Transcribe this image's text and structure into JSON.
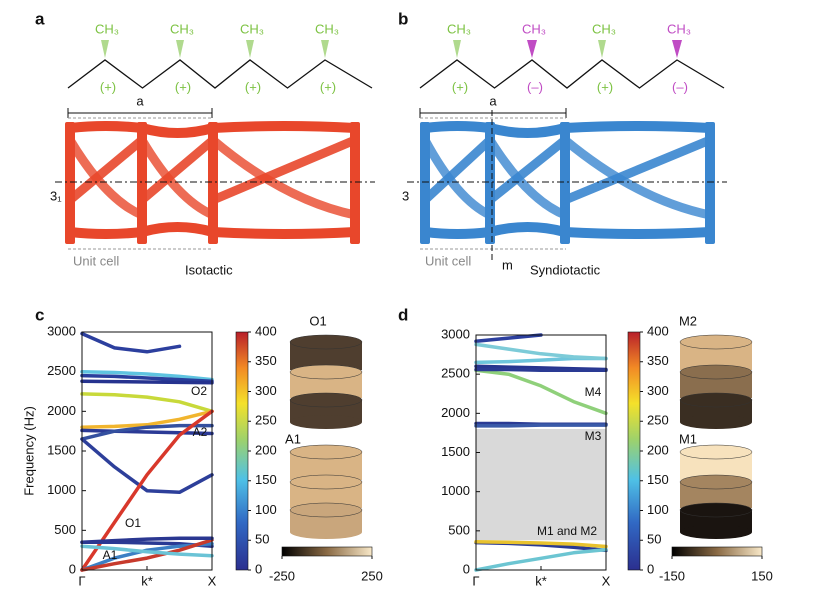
{
  "panels": [
    "a",
    "b",
    "c",
    "d"
  ],
  "diagrams": [
    {
      "groups": [
        "CH₃",
        "CH₃",
        "CH₃",
        "CH₃"
      ],
      "signs": [
        "(+)",
        "(+)",
        "(+)",
        "(+)"
      ],
      "group_colors": [
        "#7cc242",
        "#7cc242",
        "#7cc242",
        "#7cc242"
      ],
      "lattice_label": "a",
      "axis_label": "3₁",
      "unit_cell": "Unit cell",
      "name": "Isotactic",
      "color": "#e8472b"
    },
    {
      "groups": [
        "CH₃",
        "CH₃",
        "CH₃",
        "CH₃"
      ],
      "signs": [
        "(+)",
        "(–)",
        "(+)",
        "(–)"
      ],
      "group_colors": [
        "#7cc242",
        "#c04cc4",
        "#7cc242",
        "#c04cc4"
      ],
      "lattice_label": "a",
      "axis_label": "3",
      "unit_cell": "Unit cell",
      "mirror_label": "m",
      "name": "Syndiotactic",
      "color": "#3a86cf"
    }
  ],
  "chart_data": [
    {
      "type": "line",
      "ylabel": "Frequency (Hz)",
      "x": [
        0,
        0.25,
        0.5,
        0.75,
        1
      ],
      "xlim": [
        0,
        1
      ],
      "ylim": [
        0,
        3000
      ],
      "xticks": [
        {
          "value": 0,
          "label": "Γ"
        },
        {
          "value": 0.5,
          "label": "k*"
        },
        {
          "value": 1,
          "label": "X"
        }
      ],
      "yticks": [
        0,
        500,
        1000,
        1500,
        2000,
        2500,
        3000
      ],
      "series": [
        {
          "color": "#2c3f9e",
          "values": [
            2980,
            2800,
            2750,
            2820,
            null
          ]
        },
        {
          "color": "#5fc4e0",
          "values": [
            2500,
            2490,
            2470,
            2440,
            2400
          ]
        },
        {
          "color": "#2a3f9c",
          "values": [
            2450,
            2440,
            2420,
            2400,
            2380
          ]
        },
        {
          "color": "#26338f",
          "values": [
            2380,
            2375,
            2370,
            2365,
            2360
          ]
        },
        {
          "color": "#c8d93a",
          "values": [
            2220,
            2210,
            2180,
            2120,
            2000
          ]
        },
        {
          "color": "#f1b52e",
          "values": [
            1800,
            1810,
            1830,
            1900,
            2000
          ]
        },
        {
          "color": "#2b3a96",
          "values": [
            1760,
            1750,
            1740,
            1730,
            1720
          ]
        },
        {
          "color": "#34509f",
          "values": [
            1650,
            1750,
            1800,
            1820,
            1820
          ]
        },
        {
          "color": "#2d3f9a",
          "values": [
            1650,
            1300,
            1000,
            980,
            1200
          ]
        },
        {
          "color": "#d8382b",
          "values": [
            0,
            600,
            1200,
            1700,
            2000
          ]
        },
        {
          "color": "#2a3a94",
          "values": [
            350,
            350,
            340,
            330,
            300
          ]
        },
        {
          "color": "#3b7fc4",
          "values": [
            0,
            150,
            250,
            300,
            330
          ]
        },
        {
          "color": "#c73a2c",
          "values": [
            0,
            80,
            150,
            250,
            380
          ]
        },
        {
          "color": "#2a3791",
          "values": [
            350,
            370,
            390,
            400,
            400
          ]
        },
        {
          "color": "#6ac3d6",
          "values": [
            300,
            270,
            230,
            200,
            180
          ]
        }
      ],
      "annotations": [
        "O1",
        "A1",
        "O2",
        "A2"
      ],
      "colorbar": {
        "lim": [
          0,
          400
        ],
        "ticks": [
          0,
          50,
          100,
          150,
          200,
          250,
          300,
          350,
          400
        ]
      },
      "inset_labels": [
        "O1",
        "A1"
      ],
      "inset_colorbar": {
        "lim": [
          -250,
          250
        ],
        "ticks": [
          -250,
          250
        ]
      }
    },
    {
      "type": "line",
      "x": [
        0,
        0.25,
        0.5,
        0.75,
        1
      ],
      "xlim": [
        0,
        1
      ],
      "ylim": [
        0,
        3000
      ],
      "xticks": [
        {
          "value": 0,
          "label": "Γ"
        },
        {
          "value": 0.5,
          "label": "k*"
        },
        {
          "value": 1,
          "label": "X"
        }
      ],
      "yticks": [
        0,
        500,
        1000,
        1500,
        2000,
        2500,
        3000
      ],
      "band_gap": [
        380,
        1800
      ],
      "series": [
        {
          "color": "#2c3f9e",
          "values": [
            2920,
            2960,
            3000,
            null,
            null
          ]
        },
        {
          "color": "#6ec5dc",
          "values": [
            2650,
            2660,
            2680,
            2700,
            2700
          ]
        },
        {
          "color": "#7dcbd8",
          "values": [
            2880,
            2820,
            2760,
            2720,
            2700
          ]
        },
        {
          "color": "#27358f",
          "values": [
            2600,
            2590,
            2580,
            2570,
            2560
          ]
        },
        {
          "color": "#8fd07a",
          "values": [
            2550,
            2500,
            2350,
            2150,
            2000
          ]
        },
        {
          "color": "#2a3a94",
          "values": [
            2560,
            2560,
            2550,
            2550,
            2550
          ]
        },
        {
          "color": "#2a3a94",
          "values": [
            1870,
            1870,
            1860,
            1860,
            1860
          ]
        },
        {
          "color": "#3a5aa8",
          "values": [
            1840,
            1840,
            1850,
            1850,
            1850
          ]
        },
        {
          "color": "#2a3a94",
          "values": [
            350,
            340,
            320,
            290,
            250
          ]
        },
        {
          "color": "#6cc5d2",
          "values": [
            0,
            80,
            150,
            220,
            260
          ]
        },
        {
          "color": "#e8c22e",
          "values": [
            360,
            355,
            345,
            330,
            300
          ]
        }
      ],
      "annotations": [
        "M4",
        "M3",
        "M1 and M2"
      ],
      "colorbar": {
        "lim": [
          0,
          400
        ],
        "ticks": [
          0,
          50,
          100,
          150,
          200,
          250,
          300,
          350,
          400
        ]
      },
      "inset_labels": [
        "M2",
        "M1"
      ],
      "inset_colorbar": {
        "lim": [
          -150,
          150
        ],
        "ticks": [
          -150,
          150
        ]
      }
    }
  ]
}
